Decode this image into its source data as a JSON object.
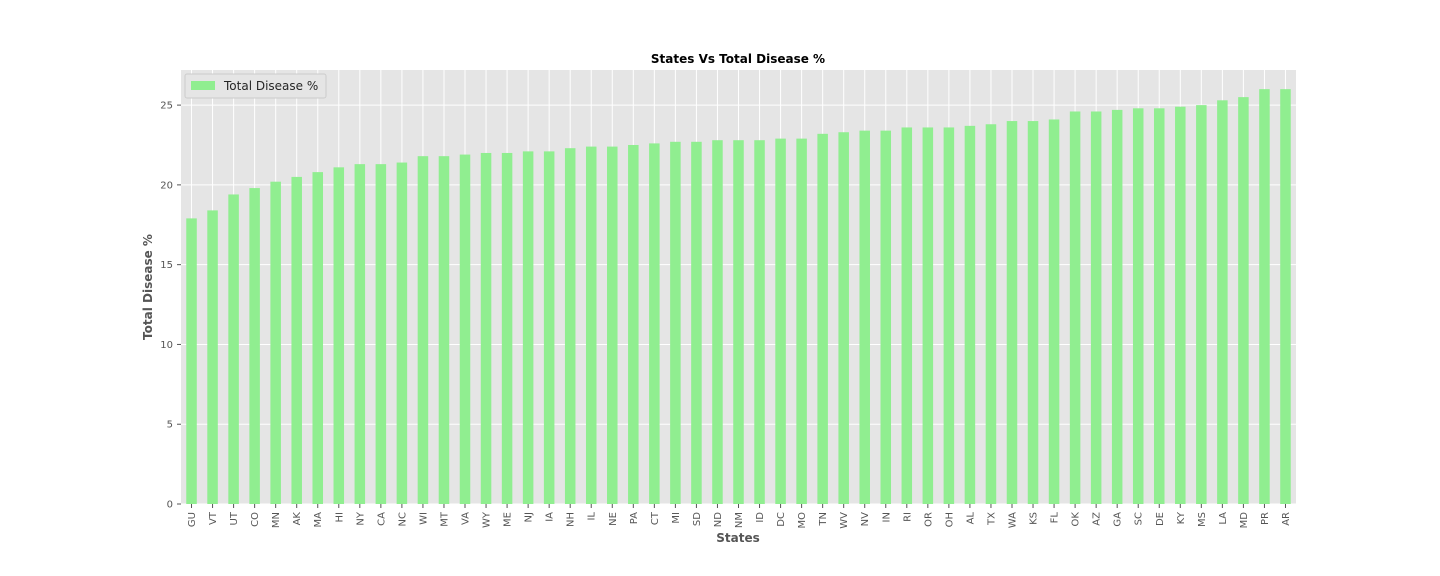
{
  "chart_data": {
    "type": "bar",
    "title": "States Vs Total Disease %",
    "xlabel": "States",
    "ylabel": "Total Disease %",
    "ylim": [
      0,
      27.2
    ],
    "yticks": [
      0,
      5,
      10,
      15,
      20,
      25
    ],
    "grid": true,
    "legend_placement": "top-left",
    "categories": [
      "GU",
      "VT",
      "UT",
      "CO",
      "MN",
      "AK",
      "MA",
      "HI",
      "NY",
      "CA",
      "NC",
      "WI",
      "MT",
      "VA",
      "WY",
      "ME",
      "NJ",
      "IA",
      "NH",
      "IL",
      "NE",
      "PA",
      "CT",
      "MI",
      "SD",
      "ND",
      "NM",
      "ID",
      "DC",
      "MO",
      "TN",
      "WV",
      "NV",
      "IN",
      "RI",
      "OR",
      "OH",
      "AL",
      "TX",
      "WA",
      "KS",
      "FL",
      "OK",
      "AZ",
      "GA",
      "SC",
      "DE",
      "KY",
      "MS",
      "LA",
      "MD",
      "PR",
      "AR"
    ],
    "series": [
      {
        "name": "Total Disease %",
        "color": "#90ee90",
        "values": [
          17.9,
          18.4,
          19.4,
          19.8,
          20.2,
          20.5,
          20.8,
          21.1,
          21.3,
          21.3,
          21.4,
          21.8,
          21.8,
          21.9,
          22.0,
          22.0,
          22.1,
          22.1,
          22.3,
          22.4,
          22.4,
          22.5,
          22.6,
          22.7,
          22.7,
          22.8,
          22.8,
          22.8,
          22.9,
          22.9,
          23.2,
          23.3,
          23.4,
          23.4,
          23.6,
          23.6,
          23.6,
          23.7,
          23.8,
          24.0,
          24.0,
          24.1,
          24.6,
          24.6,
          24.7,
          24.8,
          24.8,
          24.9,
          25.0,
          25.3,
          25.5,
          26.0,
          26.0
        ]
      }
    ]
  },
  "colors": {
    "plot_background": "#e5e5e5",
    "grid": "#ffffff",
    "tick_text": "#555555"
  }
}
